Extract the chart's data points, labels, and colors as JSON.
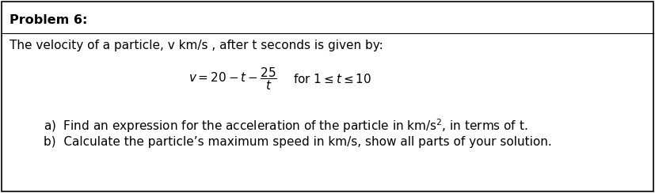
{
  "title": "Problem 6:",
  "line1": "The velocity of a particle, v km/s , after t seconds is given by:",
  "formula_left": "$v = 20 - t - \\dfrac{25}{t}$",
  "formula_right": "for $1 \\leq t \\leq 10$",
  "item_a": "a)  Find an expression for the acceleration of the particle in km/s$^2$, in terms of t.",
  "item_b": "b)  Calculate the particle’s maximum speed in km/s, show all parts of your solution.",
  "bg_color": "#ffffff",
  "border_color": "#000000",
  "text_color": "#000000",
  "title_fontsize": 11.5,
  "body_fontsize": 11,
  "formula_fontsize": 11
}
